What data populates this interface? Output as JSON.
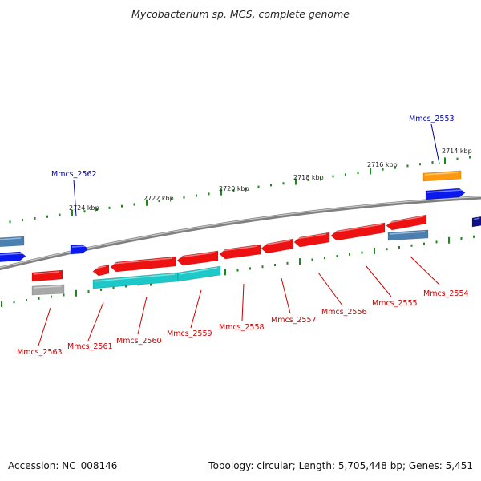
{
  "title": "Mycobacterium sp. MCS, complete genome",
  "footer": {
    "accession_label": "Accession:",
    "accession": "NC_008146",
    "topology_label": "Topology:",
    "topology": "circular",
    "length_label": "Length:",
    "length": "5,705,448 bp",
    "genes_label": "Genes:",
    "genes": "5,451"
  },
  "scale_labels": [
    "2714 kbp",
    "2716 kbp",
    "2718 kbp",
    "2720 kbp",
    "2722 kbp",
    "2724 kbp"
  ],
  "gene_labels": {
    "forward": [
      "Mmcs_2553",
      "Mmcs_2562"
    ],
    "reverse": [
      "Mmcs_2554",
      "Mmcs_2555",
      "Mmcs_2556",
      "Mmcs_2557",
      "Mmcs_2558",
      "Mmcs_2559",
      "Mmcs_2560",
      "Mmcs_2561",
      "Mmcs_2563"
    ]
  },
  "colors": {
    "forward_label": "#0000aa",
    "reverse_label": "#cc0000",
    "gene_red": "#ee1111",
    "gene_cyan": "#1cc8c8",
    "gene_blue": "#0a1aee",
    "gene_orange": "#ff9910",
    "gene_steel": "#4a7fb0",
    "gene_grey": "#a8a8a8",
    "gene_navy": "#10108a",
    "backbone": "#808080",
    "tick_green": "#1a8a1a"
  }
}
